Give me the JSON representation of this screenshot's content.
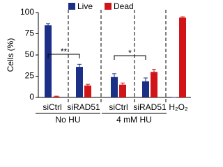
{
  "chart_data": {
    "type": "bar",
    "y_label": "Cells (%)",
    "categories": [
      "siCtrl",
      "siRAD51",
      "siCtrl",
      "siRAD51",
      "H₂O₂"
    ],
    "group_labels": [
      "No HU",
      "4 mM HU"
    ],
    "series": [
      {
        "name": "Live",
        "color": "#1c2f86",
        "values": [
          85,
          36,
          24,
          19,
          0
        ],
        "errors": [
          2,
          3,
          4,
          4,
          0
        ]
      },
      {
        "name": "Dead",
        "color": "#d01418",
        "values": [
          1,
          14,
          15,
          30,
          94
        ],
        "errors": [
          0.5,
          1.5,
          2,
          3,
          1
        ]
      }
    ],
    "annotations": [
      "**",
      "*"
    ],
    "ylim": [
      0,
      100
    ],
    "yticks": [
      0,
      25,
      50,
      75,
      100
    ],
    "grid": false
  }
}
